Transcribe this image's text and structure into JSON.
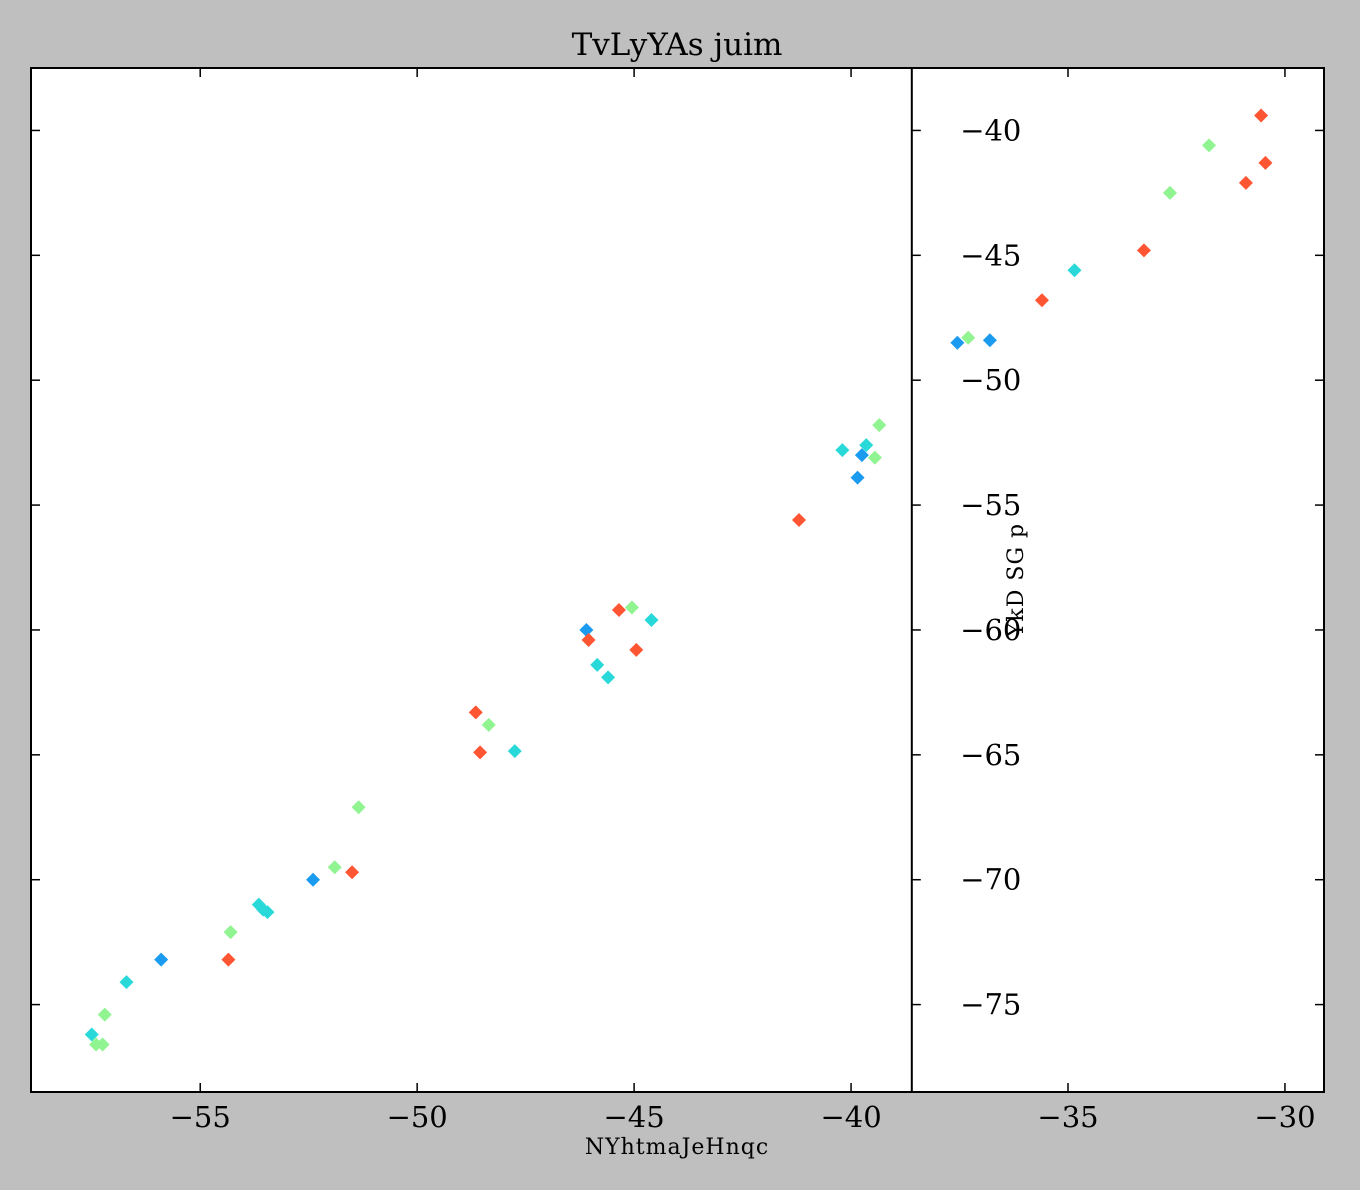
{
  "chart_data": {
    "type": "scatter",
    "title": "TvLyYAs juim",
    "xlabel": "NYhtmaJeHnqc",
    "ylabel": "YkD SG p",
    "xlim": [
      -58.9,
      -29.1
    ],
    "ylim": [
      -78.5,
      -37.5
    ],
    "xticks": [
      -55,
      -50,
      -45,
      -40,
      -35,
      -30
    ],
    "yticks": [
      -40,
      -45,
      -50,
      -55,
      -60,
      -65,
      -70,
      -75
    ],
    "xtick_labels": [
      "−55",
      "−50",
      "−45",
      "−40",
      "−35",
      "−30"
    ],
    "ytick_labels": [
      "−40",
      "−45",
      "−50",
      "−55",
      "−60",
      "−65",
      "−70",
      "−75"
    ],
    "grid": false,
    "marker": "diamond",
    "colors": {
      "red": "#ff5533",
      "green": "#90f590",
      "cyan": "#29d9d9",
      "blue": "#1a9bef"
    },
    "points": [
      {
        "x": -57.5,
        "y": -76.2,
        "c": "cyan"
      },
      {
        "x": -57.4,
        "y": -76.6,
        "c": "green"
      },
      {
        "x": -57.25,
        "y": -76.6,
        "c": "green"
      },
      {
        "x": -57.2,
        "y": -75.4,
        "c": "green"
      },
      {
        "x": -56.7,
        "y": -74.1,
        "c": "cyan"
      },
      {
        "x": -55.9,
        "y": -73.2,
        "c": "blue"
      },
      {
        "x": -54.35,
        "y": -73.2,
        "c": "red"
      },
      {
        "x": -54.3,
        "y": -72.1,
        "c": "green"
      },
      {
        "x": -53.65,
        "y": -71.0,
        "c": "cyan"
      },
      {
        "x": -53.55,
        "y": -71.2,
        "c": "cyan"
      },
      {
        "x": -53.45,
        "y": -71.3,
        "c": "cyan"
      },
      {
        "x": -52.4,
        "y": -70.0,
        "c": "blue"
      },
      {
        "x": -51.9,
        "y": -69.5,
        "c": "green"
      },
      {
        "x": -51.5,
        "y": -69.7,
        "c": "red"
      },
      {
        "x": -51.35,
        "y": -67.1,
        "c": "green"
      },
      {
        "x": -48.65,
        "y": -63.3,
        "c": "red"
      },
      {
        "x": -48.55,
        "y": -64.9,
        "c": "red"
      },
      {
        "x": -48.35,
        "y": -63.8,
        "c": "green"
      },
      {
        "x": -47.75,
        "y": -64.85,
        "c": "cyan"
      },
      {
        "x": -46.1,
        "y": -60.0,
        "c": "blue"
      },
      {
        "x": -46.05,
        "y": -60.4,
        "c": "red"
      },
      {
        "x": -45.85,
        "y": -61.4,
        "c": "cyan"
      },
      {
        "x": -45.6,
        "y": -61.9,
        "c": "cyan"
      },
      {
        "x": -45.35,
        "y": -59.2,
        "c": "red"
      },
      {
        "x": -45.05,
        "y": -59.1,
        "c": "green"
      },
      {
        "x": -44.95,
        "y": -60.8,
        "c": "red"
      },
      {
        "x": -44.6,
        "y": -59.6,
        "c": "cyan"
      },
      {
        "x": -41.2,
        "y": -55.6,
        "c": "red"
      },
      {
        "x": -40.2,
        "y": -52.8,
        "c": "cyan"
      },
      {
        "x": -39.85,
        "y": -53.9,
        "c": "blue"
      },
      {
        "x": -39.75,
        "y": -53.0,
        "c": "blue"
      },
      {
        "x": -39.65,
        "y": -52.6,
        "c": "cyan"
      },
      {
        "x": -39.45,
        "y": -53.1,
        "c": "green"
      },
      {
        "x": -39.35,
        "y": -51.8,
        "c": "green"
      },
      {
        "x": -37.55,
        "y": -48.5,
        "c": "blue"
      },
      {
        "x": -37.3,
        "y": -48.3,
        "c": "green"
      },
      {
        "x": -36.8,
        "y": -48.4,
        "c": "blue"
      },
      {
        "x": -35.6,
        "y": -46.8,
        "c": "red"
      },
      {
        "x": -34.85,
        "y": -45.6,
        "c": "cyan"
      },
      {
        "x": -33.25,
        "y": -44.8,
        "c": "red"
      },
      {
        "x": -32.65,
        "y": -42.5,
        "c": "green"
      },
      {
        "x": -31.75,
        "y": -40.6,
        "c": "green"
      },
      {
        "x": -30.9,
        "y": -42.1,
        "c": "red"
      },
      {
        "x": -30.55,
        "y": -39.4,
        "c": "red"
      },
      {
        "x": -30.45,
        "y": -41.3,
        "c": "red"
      }
    ]
  }
}
